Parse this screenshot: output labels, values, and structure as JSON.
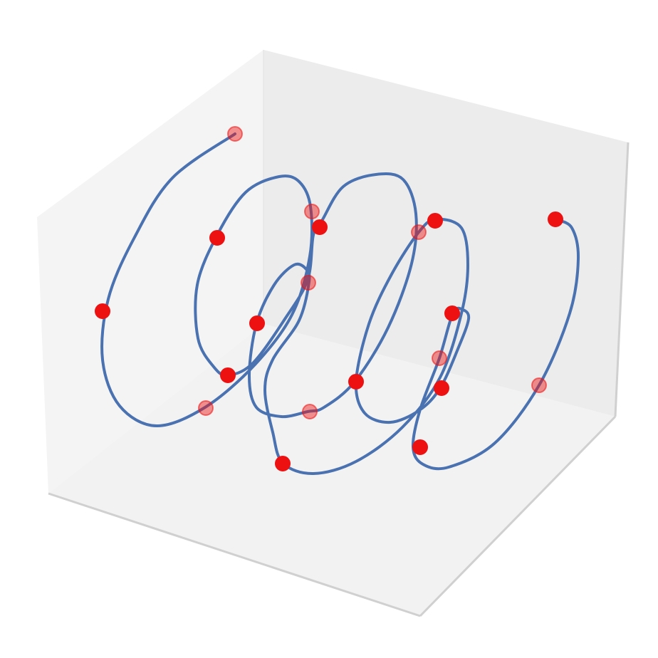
{
  "chart_data": {
    "type": "scatter",
    "title": "",
    "xlabel": "",
    "ylabel": "",
    "zlabel": "",
    "grid": false,
    "axes_visible": false,
    "colors": {
      "line": "#4a72b0",
      "marker": "#ee1111",
      "pane_back": "#ececec",
      "pane_side": "#f4f4f4",
      "pane_floor": "#f2f2f2",
      "pane_edge": "#d0d0d0"
    },
    "series": [
      {
        "kind": "line",
        "points_2d": [
          [
            330,
            188
          ],
          [
            242,
            250
          ],
          [
            188,
            335
          ],
          [
            152,
            420
          ],
          [
            144,
            505
          ],
          [
            168,
            570
          ],
          [
            220,
            598
          ],
          [
            288,
            572
          ],
          [
            358,
            512
          ],
          [
            410,
            442
          ],
          [
            435,
            360
          ],
          [
            436,
            290
          ],
          [
            420,
            255
          ],
          [
            392,
            248
          ],
          [
            345,
            270
          ],
          [
            305,
            330
          ],
          [
            277,
            400
          ],
          [
            278,
            475
          ],
          [
            300,
            515
          ],
          [
            320,
            527
          ],
          [
            355,
            510
          ],
          [
            400,
            448
          ],
          [
            432,
            393
          ],
          [
            440,
            330
          ],
          [
            452,
            310
          ],
          [
            482,
            262
          ],
          [
            528,
            245
          ],
          [
            566,
            252
          ],
          [
            584,
            300
          ],
          [
            578,
            370
          ],
          [
            545,
            460
          ],
          [
            498,
            536
          ],
          [
            455,
            572
          ],
          [
            432,
            578
          ],
          [
            395,
            585
          ],
          [
            360,
            572
          ],
          [
            350,
            528
          ],
          [
            360,
            455
          ],
          [
            385,
            400
          ],
          [
            413,
            372
          ],
          [
            430,
            378
          ],
          [
            434,
            396
          ],
          [
            420,
            450
          ],
          [
            383,
            505
          ],
          [
            372,
            548
          ],
          [
            383,
            607
          ],
          [
            397,
            650
          ],
          [
            440,
            665
          ],
          [
            500,
            648
          ],
          [
            565,
            600
          ],
          [
            618,
            530
          ],
          [
            648,
            440
          ],
          [
            657,
            372
          ],
          [
            648,
            320
          ],
          [
            612,
            308
          ],
          [
            588,
            326
          ],
          [
            550,
            385
          ],
          [
            518,
            455
          ],
          [
            500,
            536
          ],
          [
            512,
            580
          ],
          [
            548,
            593
          ],
          [
            589,
            576
          ],
          [
            618,
            545
          ],
          [
            643,
            490
          ],
          [
            658,
            448
          ],
          [
            650,
            435
          ],
          [
            636,
            440
          ],
          [
            617,
            503
          ],
          [
            590,
            575
          ],
          [
            580,
            628
          ],
          [
            594,
            652
          ],
          [
            630,
            656
          ],
          [
            695,
            622
          ],
          [
            757,
            541
          ],
          [
            800,
            440
          ],
          [
            812,
            364
          ],
          [
            803,
            320
          ],
          [
            780,
            308
          ]
        ]
      },
      {
        "kind": "scatter",
        "points_2d": [
          [
            330,
            188,
            0.45
          ],
          [
            305,
            334,
            1
          ],
          [
            144,
            437,
            1
          ],
          [
            289,
            573,
            0.45
          ],
          [
            438,
            297,
            0.45
          ],
          [
            361,
            454,
            1
          ],
          [
            320,
            527,
            1
          ],
          [
            449,
            319,
            1
          ],
          [
            433,
            397,
            0.45
          ],
          [
            435,
            578,
            0.45
          ],
          [
            397,
            651,
            1
          ],
          [
            500,
            536,
            1
          ],
          [
            588,
            326,
            0.45
          ],
          [
            611,
            310,
            1
          ],
          [
            635,
            440,
            1
          ],
          [
            617,
            503,
            0.45
          ],
          [
            620,
            545,
            1
          ],
          [
            590,
            628,
            1
          ],
          [
            757,
            541,
            0.45
          ],
          [
            780,
            308,
            1
          ]
        ]
      }
    ]
  }
}
